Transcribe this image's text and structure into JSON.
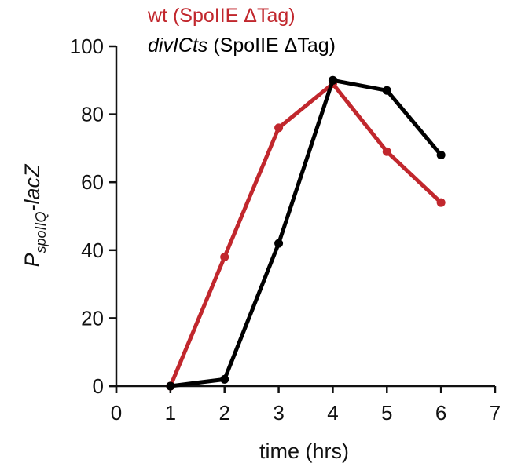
{
  "chart_data": {
    "type": "line",
    "title": "",
    "xlabel": "time (hrs)",
    "ylabel": "P_spoIIQ-lacZ",
    "ylabel_parts": {
      "main": "P",
      "subscript": "spoIIQ",
      "suffix": "-lacZ"
    },
    "xlim": [
      0,
      7
    ],
    "ylim": [
      0,
      100
    ],
    "x_ticks": [
      0,
      1,
      2,
      3,
      4,
      5,
      6,
      7
    ],
    "y_ticks": [
      0,
      20,
      40,
      60,
      80,
      100
    ],
    "grid": false,
    "legend_position": "top",
    "x": [
      1,
      2,
      3,
      4,
      5,
      6
    ],
    "series": [
      {
        "name": "wt (SpoIIE ΔTag)",
        "color": "#c1272d",
        "values": [
          0,
          38,
          76,
          89,
          69,
          54
        ]
      },
      {
        "name": "divICts (SpoIIE ΔTag)",
        "name_italic_part": "divICts",
        "name_rest": " (SpoIIE ΔTag)",
        "color": "#000000",
        "values": [
          0,
          2,
          42,
          90,
          87,
          68
        ]
      }
    ]
  }
}
